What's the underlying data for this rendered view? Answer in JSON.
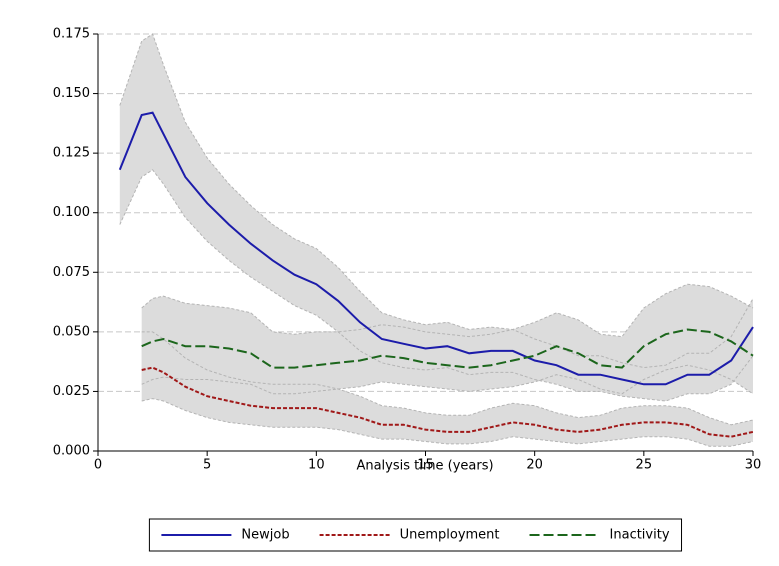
{
  "chart_data": {
    "type": "line",
    "x_label": "Analysis time (years)",
    "x": [
      1,
      2,
      2.5,
      3,
      4,
      5,
      6,
      7,
      8,
      9,
      10,
      11,
      12,
      13,
      14,
      15,
      16,
      17,
      18,
      19,
      20,
      21,
      22,
      23,
      24,
      25,
      26,
      27,
      28,
      29,
      30
    ],
    "xlim": [
      0,
      30
    ],
    "xticks": [
      0,
      5,
      10,
      15,
      20,
      25,
      30
    ],
    "ylim": [
      0,
      0.175
    ],
    "yticks": [
      {
        "value": 0,
        "label": "0.000"
      },
      0.025,
      {
        "value": 0.05,
        "label": "0.050"
      },
      0.075,
      {
        "value": 0.1,
        "label": "0.100"
      },
      0.125,
      {
        "value": 0.15,
        "label": "0.150"
      },
      0.175
    ],
    "grid": true,
    "legend": "bottom",
    "band_color": "#dcdcdc",
    "series": [
      {
        "name": "Newjob",
        "color": "#1c1caa",
        "linestyle": "solid",
        "values": [
          0.118,
          0.141,
          0.142,
          0.133,
          0.115,
          0.104,
          0.095,
          0.087,
          0.08,
          0.074,
          0.07,
          0.063,
          0.054,
          0.047,
          0.045,
          0.043,
          0.044,
          0.041,
          0.042,
          0.042,
          0.038,
          0.036,
          0.032,
          0.032,
          0.03,
          0.028,
          0.028,
          0.032,
          0.032,
          0.038,
          0.052
        ],
        "lower": [
          0.095,
          0.115,
          0.118,
          0.112,
          0.098,
          0.088,
          0.08,
          0.073,
          0.067,
          0.061,
          0.057,
          0.05,
          0.042,
          0.037,
          0.035,
          0.034,
          0.035,
          0.032,
          0.033,
          0.033,
          0.03,
          0.028,
          0.025,
          0.025,
          0.023,
          0.022,
          0.021,
          0.024,
          0.024,
          0.028,
          0.04
        ],
        "upper": [
          0.145,
          0.172,
          0.175,
          0.162,
          0.138,
          0.123,
          0.112,
          0.103,
          0.095,
          0.089,
          0.085,
          0.077,
          0.067,
          0.058,
          0.055,
          0.053,
          0.054,
          0.051,
          0.052,
          0.051,
          0.047,
          0.044,
          0.04,
          0.04,
          0.037,
          0.035,
          0.036,
          0.041,
          0.041,
          0.048,
          0.064
        ]
      },
      {
        "name": "Unemployment",
        "color": "#a01818",
        "linestyle": "dotted",
        "values": [
          null,
          0.034,
          0.035,
          0.033,
          0.027,
          0.023,
          0.021,
          0.019,
          0.018,
          0.018,
          0.018,
          0.016,
          0.014,
          0.011,
          0.011,
          0.009,
          0.008,
          0.008,
          0.01,
          0.012,
          0.011,
          0.009,
          0.008,
          0.009,
          0.011,
          0.012,
          0.012,
          0.011,
          0.007,
          0.006,
          0.008
        ],
        "lower": [
          null,
          0.021,
          0.022,
          0.021,
          0.017,
          0.014,
          0.012,
          0.011,
          0.01,
          0.01,
          0.01,
          0.009,
          0.007,
          0.005,
          0.005,
          0.004,
          0.003,
          0.003,
          0.004,
          0.006,
          0.005,
          0.004,
          0.003,
          0.004,
          0.005,
          0.006,
          0.006,
          0.005,
          0.002,
          0.002,
          0.004
        ],
        "upper": [
          null,
          0.05,
          0.05,
          0.047,
          0.039,
          0.034,
          0.031,
          0.029,
          0.028,
          0.028,
          0.028,
          0.026,
          0.023,
          0.019,
          0.018,
          0.016,
          0.015,
          0.015,
          0.018,
          0.02,
          0.019,
          0.016,
          0.014,
          0.015,
          0.018,
          0.019,
          0.019,
          0.018,
          0.014,
          0.011,
          0.013
        ]
      },
      {
        "name": "Inactivity",
        "color": "#1c661c",
        "linestyle": "dashed",
        "values": [
          null,
          0.044,
          0.046,
          0.047,
          0.044,
          0.044,
          0.043,
          0.041,
          0.035,
          0.035,
          0.036,
          0.037,
          0.038,
          0.04,
          0.039,
          0.037,
          0.036,
          0.035,
          0.036,
          0.038,
          0.04,
          0.044,
          0.041,
          0.036,
          0.035,
          0.044,
          0.049,
          0.051,
          0.05,
          0.046,
          0.04
        ],
        "lower": [
          null,
          0.028,
          0.03,
          0.031,
          0.03,
          0.03,
          0.029,
          0.028,
          0.024,
          0.024,
          0.025,
          0.026,
          0.027,
          0.029,
          0.028,
          0.027,
          0.026,
          0.025,
          0.026,
          0.027,
          0.029,
          0.032,
          0.03,
          0.026,
          0.024,
          0.03,
          0.034,
          0.036,
          0.034,
          0.03,
          0.024
        ],
        "upper": [
          null,
          0.06,
          0.064,
          0.065,
          0.062,
          0.061,
          0.06,
          0.058,
          0.05,
          0.049,
          0.05,
          0.05,
          0.051,
          0.053,
          0.052,
          0.05,
          0.049,
          0.048,
          0.049,
          0.051,
          0.054,
          0.058,
          0.055,
          0.049,
          0.048,
          0.06,
          0.066,
          0.07,
          0.069,
          0.065,
          0.06
        ]
      }
    ]
  }
}
